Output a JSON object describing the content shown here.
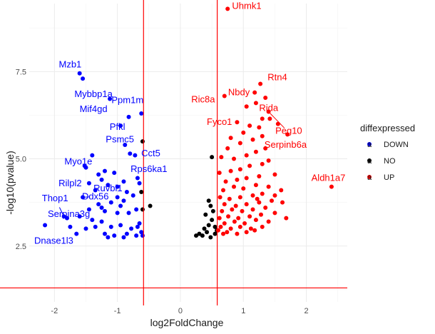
{
  "chart_data": {
    "type": "scatter",
    "title": "",
    "xlabel": "log2FoldChange",
    "ylabel": "-log10(pvalue)",
    "xlim": [
      -2.4,
      2.65
    ],
    "ylim": [
      0.9,
      9.45
    ],
    "x_ticks": [
      -2,
      -1,
      0,
      1,
      2
    ],
    "x_tick_labels": [
      "-2",
      "-1",
      "0",
      "1",
      "2"
    ],
    "y_ticks": [
      2.5,
      5.0,
      7.5
    ],
    "y_tick_labels": [
      "2.5",
      "5.0",
      "7.5"
    ],
    "grid": true,
    "vlines": [
      -0.585,
      0.585
    ],
    "hline": 1.3,
    "threshold_color": "#ff0000",
    "legend": {
      "title": "diffexpressed",
      "placement": "right",
      "items": [
        {
          "label": "DOWN",
          "color": "#0000ff",
          "key": "a"
        },
        {
          "label": "NO",
          "color": "#000000",
          "key": "a"
        },
        {
          "label": "UP",
          "color": "#ff0000",
          "key": "a"
        }
      ]
    },
    "colors": {
      "DOWN": "#0000ff",
      "NO": "#000000",
      "UP": "#ff0000"
    },
    "series": [
      {
        "name": "DOWN",
        "points": [
          [
            -1.6,
            7.45
          ],
          [
            -1.55,
            7.3
          ],
          [
            -1.12,
            6.72
          ],
          [
            -0.82,
            6.2
          ],
          [
            -0.62,
            6.3
          ],
          [
            -0.95,
            5.95
          ],
          [
            -0.88,
            5.4
          ],
          [
            -0.8,
            5.15
          ],
          [
            -0.72,
            5.1
          ],
          [
            -1.4,
            5.1
          ],
          [
            -1.52,
            4.8
          ],
          [
            -1.5,
            4.75
          ],
          [
            -0.68,
            4.45
          ],
          [
            -0.65,
            4.3
          ],
          [
            -0.9,
            4.35
          ],
          [
            -1.2,
            4.65
          ],
          [
            -1.05,
            4.6
          ],
          [
            -1.25,
            4.4
          ],
          [
            -1.15,
            4.25
          ],
          [
            -1.0,
            4.2
          ],
          [
            -0.85,
            4.05
          ],
          [
            -0.75,
            3.95
          ],
          [
            -1.35,
            4.1
          ],
          [
            -1.45,
            4.3
          ],
          [
            -1.55,
            3.9
          ],
          [
            -1.1,
            3.75
          ],
          [
            -0.95,
            3.65
          ],
          [
            -0.9,
            3.8
          ],
          [
            -1.3,
            3.7
          ],
          [
            -1.2,
            3.5
          ],
          [
            -1.0,
            3.45
          ],
          [
            -0.82,
            3.45
          ],
          [
            -0.7,
            3.55
          ],
          [
            -1.45,
            3.55
          ],
          [
            -1.6,
            3.35
          ],
          [
            -1.4,
            3.25
          ],
          [
            -1.25,
            3.2
          ],
          [
            -1.1,
            3.05
          ],
          [
            -0.95,
            3.1
          ],
          [
            -0.78,
            3.0
          ],
          [
            -0.68,
            3.05
          ],
          [
            -0.65,
            3.15
          ],
          [
            -1.8,
            3.3
          ],
          [
            -1.85,
            3.35
          ],
          [
            -1.5,
            3.0
          ],
          [
            -1.35,
            3.05
          ],
          [
            -1.2,
            2.85
          ],
          [
            -1.05,
            2.8
          ],
          [
            -0.85,
            2.85
          ],
          [
            -0.9,
            2.75
          ],
          [
            -0.7,
            2.8
          ],
          [
            -0.62,
            2.9
          ],
          [
            -1.75,
            3.05
          ],
          [
            -2.15,
            3.1
          ],
          [
            -1.65,
            2.85
          ],
          [
            -1.15,
            2.75
          ],
          [
            -0.6,
            2.8
          ],
          [
            -1.0,
            3.9
          ],
          [
            -1.3,
            4.55
          ],
          [
            -1.25,
            3.6
          ]
        ]
      },
      {
        "name": "NO",
        "points": [
          [
            -0.6,
            5.5
          ],
          [
            -0.62,
            4.05
          ],
          [
            -0.6,
            3.55
          ],
          [
            -0.48,
            3.65
          ],
          [
            0.5,
            5.05
          ],
          [
            0.45,
            3.8
          ],
          [
            0.48,
            3.65
          ],
          [
            0.52,
            3.5
          ],
          [
            0.4,
            3.4
          ],
          [
            0.5,
            3.25
          ],
          [
            0.45,
            3.1
          ],
          [
            0.55,
            3.05
          ],
          [
            0.38,
            3.0
          ],
          [
            0.42,
            2.9
          ],
          [
            0.3,
            2.85
          ],
          [
            0.35,
            2.8
          ],
          [
            0.25,
            2.8
          ],
          [
            0.55,
            2.85
          ],
          [
            0.48,
            2.75
          ],
          [
            0.58,
            2.95
          ]
        ]
      },
      {
        "name": "UP",
        "points": [
          [
            0.75,
            9.3
          ],
          [
            1.27,
            7.15
          ],
          [
            1.18,
            6.9
          ],
          [
            1.35,
            6.75
          ],
          [
            0.7,
            6.8
          ],
          [
            1.2,
            6.6
          ],
          [
            1.05,
            6.5
          ],
          [
            0.9,
            6.05
          ],
          [
            1.3,
            6.15
          ],
          [
            1.4,
            6.35
          ],
          [
            1.42,
            6.15
          ],
          [
            1.25,
            5.9
          ],
          [
            1.1,
            5.95
          ],
          [
            1.0,
            5.75
          ],
          [
            0.8,
            5.6
          ],
          [
            1.3,
            5.65
          ],
          [
            1.15,
            5.55
          ],
          [
            0.95,
            5.45
          ],
          [
            1.35,
            5.3
          ],
          [
            0.75,
            5.3
          ],
          [
            1.2,
            5.2
          ],
          [
            1.05,
            5.1
          ],
          [
            0.85,
            5.0
          ],
          [
            0.65,
            5.05
          ],
          [
            1.4,
            4.95
          ],
          [
            1.3,
            4.85
          ],
          [
            1.1,
            4.8
          ],
          [
            0.95,
            4.7
          ],
          [
            0.8,
            4.65
          ],
          [
            0.62,
            4.6
          ],
          [
            1.5,
            4.55
          ],
          [
            1.25,
            4.5
          ],
          [
            1.05,
            4.45
          ],
          [
            0.9,
            4.4
          ],
          [
            0.72,
            4.35
          ],
          [
            1.6,
            4.1
          ],
          [
            1.4,
            4.2
          ],
          [
            1.2,
            4.25
          ],
          [
            1.0,
            4.15
          ],
          [
            0.85,
            4.2
          ],
          [
            0.68,
            4.1
          ],
          [
            1.5,
            3.95
          ],
          [
            1.3,
            4.0
          ],
          [
            1.15,
            3.95
          ],
          [
            0.95,
            3.9
          ],
          [
            0.78,
            3.85
          ],
          [
            0.63,
            3.9
          ],
          [
            1.62,
            3.75
          ],
          [
            1.45,
            3.8
          ],
          [
            1.25,
            3.75
          ],
          [
            1.05,
            3.7
          ],
          [
            0.88,
            3.65
          ],
          [
            0.7,
            3.7
          ],
          [
            1.35,
            3.6
          ],
          [
            1.15,
            3.55
          ],
          [
            0.98,
            3.5
          ],
          [
            0.82,
            3.55
          ],
          [
            0.66,
            3.5
          ],
          [
            1.68,
            3.3
          ],
          [
            1.5,
            3.45
          ],
          [
            1.28,
            3.4
          ],
          [
            1.1,
            3.35
          ],
          [
            0.92,
            3.3
          ],
          [
            0.76,
            3.35
          ],
          [
            0.62,
            3.3
          ],
          [
            1.4,
            3.2
          ],
          [
            1.2,
            3.25
          ],
          [
            1.02,
            3.15
          ],
          [
            0.86,
            3.2
          ],
          [
            0.7,
            3.15
          ],
          [
            1.3,
            3.05
          ],
          [
            1.12,
            3.0
          ],
          [
            0.95,
            3.05
          ],
          [
            0.8,
            3.0
          ],
          [
            0.64,
            3.05
          ],
          [
            1.05,
            2.9
          ],
          [
            0.9,
            2.85
          ],
          [
            0.74,
            2.9
          ],
          [
            0.68,
            2.85
          ],
          [
            1.18,
            2.95
          ],
          [
            2.4,
            4.2
          ],
          [
            1.55,
            6.0
          ],
          [
            1.7,
            5.7
          ],
          [
            0.6,
            2.95
          ],
          [
            1.22,
            3.85
          ]
        ]
      }
    ],
    "labels": [
      {
        "text": "Uhmk1",
        "color": "#ff0000",
        "x": 0.75,
        "y": 9.3,
        "dx": 0.07,
        "dy": 0.08,
        "anchor": "start"
      },
      {
        "text": "Rtn4",
        "color": "#ff0000",
        "x": 1.27,
        "y": 7.15,
        "dx": 0.27,
        "dy": 0.18,
        "anchor": "middle"
      },
      {
        "text": "Nbdy",
        "color": "#ff0000",
        "x": 1.18,
        "y": 6.9,
        "dx": -0.25,
        "dy": 0.0,
        "anchor": "middle"
      },
      {
        "text": "Ric8a",
        "color": "#ff0000",
        "x": 0.7,
        "y": 6.8,
        "dx": -0.15,
        "dy": -0.1,
        "anchor": "end"
      },
      {
        "text": "Rida",
        "color": "#ff0000",
        "x": 1.2,
        "y": 6.6,
        "dx": 0.05,
        "dy": -0.15,
        "anchor": "start"
      },
      {
        "text": "Fyco1",
        "color": "#ff0000",
        "x": 0.9,
        "y": 6.05,
        "dx": -0.28,
        "dy": 0.0,
        "anchor": "middle"
      },
      {
        "text": "Peg10",
        "color": "#ff0000",
        "x": 1.4,
        "y": 6.35,
        "dx": 0.32,
        "dy": -0.55,
        "anchor": "middle",
        "leader": true
      },
      {
        "text": "Serpinb6a",
        "color": "#ff0000",
        "x": 1.42,
        "y": 6.15,
        "dx": 0.25,
        "dy": -0.75,
        "anchor": "middle"
      },
      {
        "text": "Aldh1a7",
        "color": "#ff0000",
        "x": 2.4,
        "y": 4.2,
        "dx": -0.05,
        "dy": 0.25,
        "anchor": "middle"
      },
      {
        "text": "Mzb1",
        "color": "#0000ff",
        "x": -1.6,
        "y": 7.45,
        "dx": -0.15,
        "dy": 0.25,
        "anchor": "middle"
      },
      {
        "text": "Mybbp1a",
        "color": "#0000ff",
        "x": -1.55,
        "y": 7.3,
        "dx": 0.17,
        "dy": -0.45,
        "anchor": "middle"
      },
      {
        "text": "Mif4gd",
        "color": "#0000ff",
        "x": -1.12,
        "y": 6.72,
        "dx": -0.26,
        "dy": -0.3,
        "anchor": "middle"
      },
      {
        "text": "Ppm1m",
        "color": "#0000ff",
        "x": -0.62,
        "y": 6.3,
        "dx": -0.22,
        "dy": 0.38,
        "anchor": "middle"
      },
      {
        "text": "Pfkl",
        "color": "#0000ff",
        "x": -0.95,
        "y": 5.95,
        "dx": -0.05,
        "dy": -0.04,
        "anchor": "middle"
      },
      {
        "text": "Psmc5",
        "color": "#0000ff",
        "x": -0.88,
        "y": 5.4,
        "dx": -0.08,
        "dy": 0.15,
        "anchor": "middle"
      },
      {
        "text": "Cct5",
        "color": "#0000ff",
        "x": -0.72,
        "y": 5.1,
        "dx": 0.25,
        "dy": 0.05,
        "anchor": "middle"
      },
      {
        "text": "Myo1e",
        "color": "#0000ff",
        "x": -1.52,
        "y": 4.8,
        "dx": -0.1,
        "dy": 0.12,
        "anchor": "middle"
      },
      {
        "text": "Rps6ka1",
        "color": "#0000ff",
        "x": -0.65,
        "y": 4.3,
        "dx": 0.15,
        "dy": 0.4,
        "anchor": "middle"
      },
      {
        "text": "Rilpl2",
        "color": "#0000ff",
        "x": -1.4,
        "y": 4.3,
        "dx": -0.35,
        "dy": 0.0,
        "anchor": "middle"
      },
      {
        "text": "Ruvbl1",
        "color": "#0000ff",
        "x": -1.0,
        "y": 4.2,
        "dx": -0.15,
        "dy": -0.05,
        "anchor": "middle"
      },
      {
        "text": "Ddx56",
        "color": "#0000ff",
        "x": -1.55,
        "y": 3.9,
        "dx": 0.2,
        "dy": 0.02,
        "anchor": "middle"
      },
      {
        "text": "Thop1",
        "color": "#0000ff",
        "x": -1.85,
        "y": 3.35,
        "dx": -0.14,
        "dy": 0.52,
        "anchor": "middle"
      },
      {
        "text": "Serpina3g",
        "color": "#0000ff",
        "x": -1.75,
        "y": 3.05,
        "dx": -0.02,
        "dy": 0.37,
        "anchor": "middle"
      },
      {
        "text": "Dnase1l3",
        "color": "#0000ff",
        "x": -2.15,
        "y": 3.1,
        "dx": 0.14,
        "dy": -0.45,
        "anchor": "middle"
      }
    ]
  }
}
